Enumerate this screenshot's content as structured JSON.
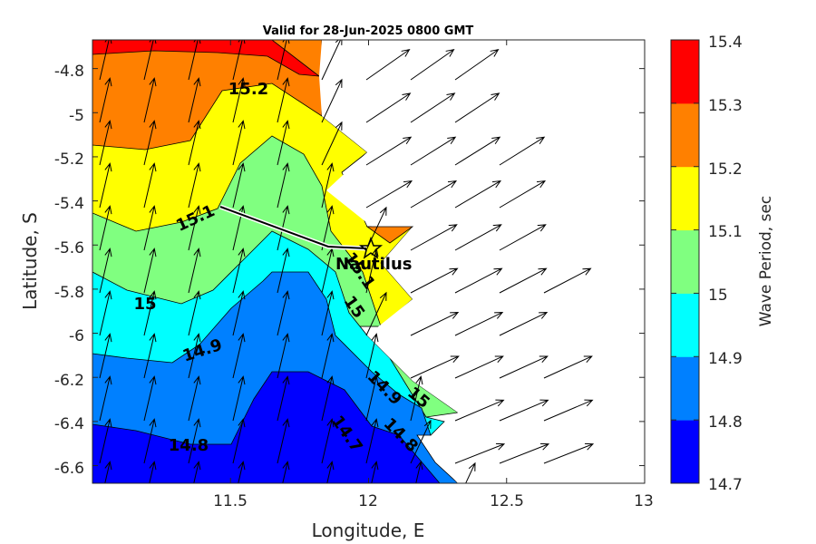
{
  "chart_data": {
    "type": "filled-contour-map",
    "title": "Valid for 28-Jun-2025 0800 GMT",
    "xlabel": "Longitude, E",
    "ylabel": "Latitude, S",
    "xlim": [
      11.0,
      13.0
    ],
    "ylim": [
      -6.68,
      -4.67
    ],
    "xticks": [
      11.5,
      12,
      12.5,
      13
    ],
    "xtick_labels": [
      "11.5",
      "12",
      "12.5",
      "13"
    ],
    "yticks": [
      -4.8,
      -5,
      -5.2,
      -5.4,
      -5.6,
      -5.8,
      -6,
      -6.2,
      -6.4,
      -6.6
    ],
    "ytick_labels": [
      "-4.8",
      "-5",
      "-5.2",
      "-5.4",
      "-5.6",
      "-5.8",
      "-6",
      "-6.2",
      "-6.4",
      "-6.6"
    ],
    "colorbar": {
      "label": "Wave Period, sec",
      "ticks": [
        "14.7",
        "14.8",
        "14.9",
        "15",
        "15.1",
        "15.2",
        "15.3",
        "15.4"
      ],
      "levels": [
        14.7,
        14.8,
        14.9,
        15.0,
        15.1,
        15.2,
        15.3,
        15.4
      ],
      "colors": [
        "#0000ff",
        "#0080ff",
        "#00ffff",
        "#80ff80",
        "#ffff00",
        "#ff8000",
        "#ff0000"
      ]
    },
    "contour_labels": [
      {
        "text": "15.2",
        "lon": 11.56,
        "lat": -4.88,
        "angle": 0
      },
      {
        "text": "15.1",
        "lon": 11.38,
        "lat": -5.46,
        "angle": -25
      },
      {
        "text": "15",
        "lon": 11.19,
        "lat": -5.86,
        "angle": 0
      },
      {
        "text": "14.9",
        "lon": 11.4,
        "lat": -6.07,
        "angle": -18
      },
      {
        "text": "14.8",
        "lon": 11.35,
        "lat": -6.52,
        "angle": 0
      },
      {
        "text": "14.7",
        "lon": 11.92,
        "lat": -6.45,
        "angle": 55
      },
      {
        "text": "14.9",
        "lon": 12.05,
        "lat": -6.26,
        "angle": 45
      },
      {
        "text": "14.8",
        "lon": 12.11,
        "lat": -6.45,
        "angle": 45
      },
      {
        "text": "15",
        "lon": 12.18,
        "lat": -6.31,
        "angle": 40
      },
      {
        "text": "15",
        "lon": 11.94,
        "lat": -5.9,
        "angle": 55
      },
      {
        "text": "15.1",
        "lon": 11.96,
        "lat": -5.7,
        "angle": 55
      }
    ],
    "track": [
      [
        11.45,
        -5.4
      ],
      [
        11.88,
        -5.6
      ],
      [
        12.0,
        -5.61
      ]
    ],
    "marker": {
      "label": "Nautilus",
      "lon": 12.02,
      "lat": -5.61
    },
    "vector_field": "wave direction arrows, pointing north-north-east over the sea"
  }
}
